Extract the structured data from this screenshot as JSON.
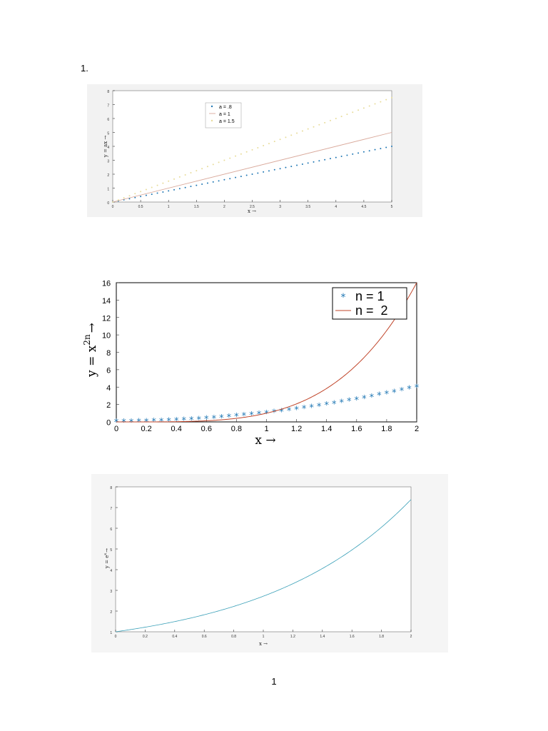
{
  "document": {
    "list_number": "1.",
    "page_number": "1"
  },
  "chart_data": [
    {
      "type": "line",
      "x": [
        0,
        0.5,
        1,
        1.5,
        2,
        2.5,
        3,
        3.5,
        4,
        4.5,
        5
      ],
      "xlim": [
        0,
        5
      ],
      "ylim": [
        0,
        8
      ],
      "xticks": [
        "0",
        "0.5",
        "1",
        "1.5",
        "2",
        "2.5",
        "3",
        "3.5",
        "4",
        "4.5",
        "5"
      ],
      "yticks": [
        "0",
        "1",
        "2",
        "3",
        "4",
        "5",
        "6",
        "7",
        "8"
      ],
      "xlabel": "x →",
      "ylabel": "y = ax →",
      "legend_position": "top-center",
      "series": [
        {
          "name": "a = .8",
          "slope": 0.8,
          "style": "dotted",
          "color": "#1f77b4"
        },
        {
          "name": "a = 1",
          "slope": 1.0,
          "style": "solid",
          "color": "#d9a89a"
        },
        {
          "name": "a = 1.5",
          "slope": 1.5,
          "style": "dotted",
          "color": "#e8dc9a"
        }
      ],
      "function": "y = a*x",
      "grid": false
    },
    {
      "type": "line",
      "xlim": [
        0,
        2
      ],
      "ylim": [
        0,
        16
      ],
      "xticks": [
        "0",
        "0.2",
        "0.4",
        "0.6",
        "0.8",
        "1",
        "1.2",
        "1.4",
        "1.6",
        "1.8",
        "2"
      ],
      "yticks": [
        "0",
        "2",
        "4",
        "6",
        "8",
        "10",
        "12",
        "14",
        "16"
      ],
      "xlabel": "x →",
      "ylabel": "y = x",
      "ylabel_sup": "2n",
      "ylabel_arrow": "→",
      "legend_position": "top-right",
      "series": [
        {
          "name": "n = 1",
          "exponent": 2,
          "style": "asterisk",
          "color": "#1f77b4"
        },
        {
          "name": "n =  2",
          "exponent": 4,
          "style": "solid",
          "color": "#c0452a"
        }
      ],
      "function": "y = x^(2n)",
      "grid": false
    },
    {
      "type": "line",
      "xlim": [
        0,
        2
      ],
      "ylim": [
        1,
        8
      ],
      "xticks": [
        "0",
        "0.2",
        "0.4",
        "0.6",
        "0.8",
        "1",
        "1.2",
        "1.4",
        "1.6",
        "1.8",
        "2"
      ],
      "yticks": [
        "1",
        "2",
        "3",
        "4",
        "5",
        "6",
        "7",
        "8"
      ],
      "xlabel": "x →",
      "ylabel": "y = e",
      "ylabel_sup": "x",
      "ylabel_arrow": "→",
      "series": [
        {
          "function": "y = e^x",
          "style": "solid",
          "color": "#3aa0b8"
        }
      ],
      "grid": false
    }
  ]
}
